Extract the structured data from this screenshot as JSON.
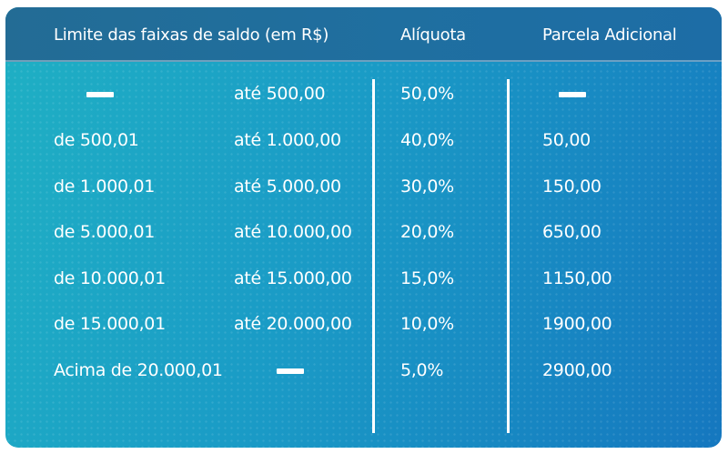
{
  "headers": {
    "range": "Limite das faixas de saldo (em R$)",
    "rate": "Alíquota",
    "extra": "Parcela Adicional"
  },
  "rows": [
    {
      "from": "",
      "to": "até 500,00",
      "rate": "50,0%",
      "extra": ""
    },
    {
      "from": "de 500,01",
      "to": "até 1.000,00",
      "rate": "40,0%",
      "extra": "50,00"
    },
    {
      "from": "de 1.000,01",
      "to": "até 5.000,00",
      "rate": "30,0%",
      "extra": "150,00"
    },
    {
      "from": "de 5.000,01",
      "to": "até 10.000,00",
      "rate": "20,0%",
      "extra": "650,00"
    },
    {
      "from": "de 10.000,01",
      "to": "até 15.000,00",
      "rate": "15,0%",
      "extra": "1150,00"
    },
    {
      "from": "de 15.000,01",
      "to": "até 20.000,00",
      "rate": "10,0%",
      "extra": "1900,00"
    },
    {
      "from": "Acima de 20.000,01",
      "to": "",
      "rate": "5,0%",
      "extra": "2900,00"
    }
  ],
  "colors": {
    "header": "#236c95",
    "background_start": "#1fb0c4",
    "background_end": "#1577bf",
    "text": "#ffffff"
  }
}
